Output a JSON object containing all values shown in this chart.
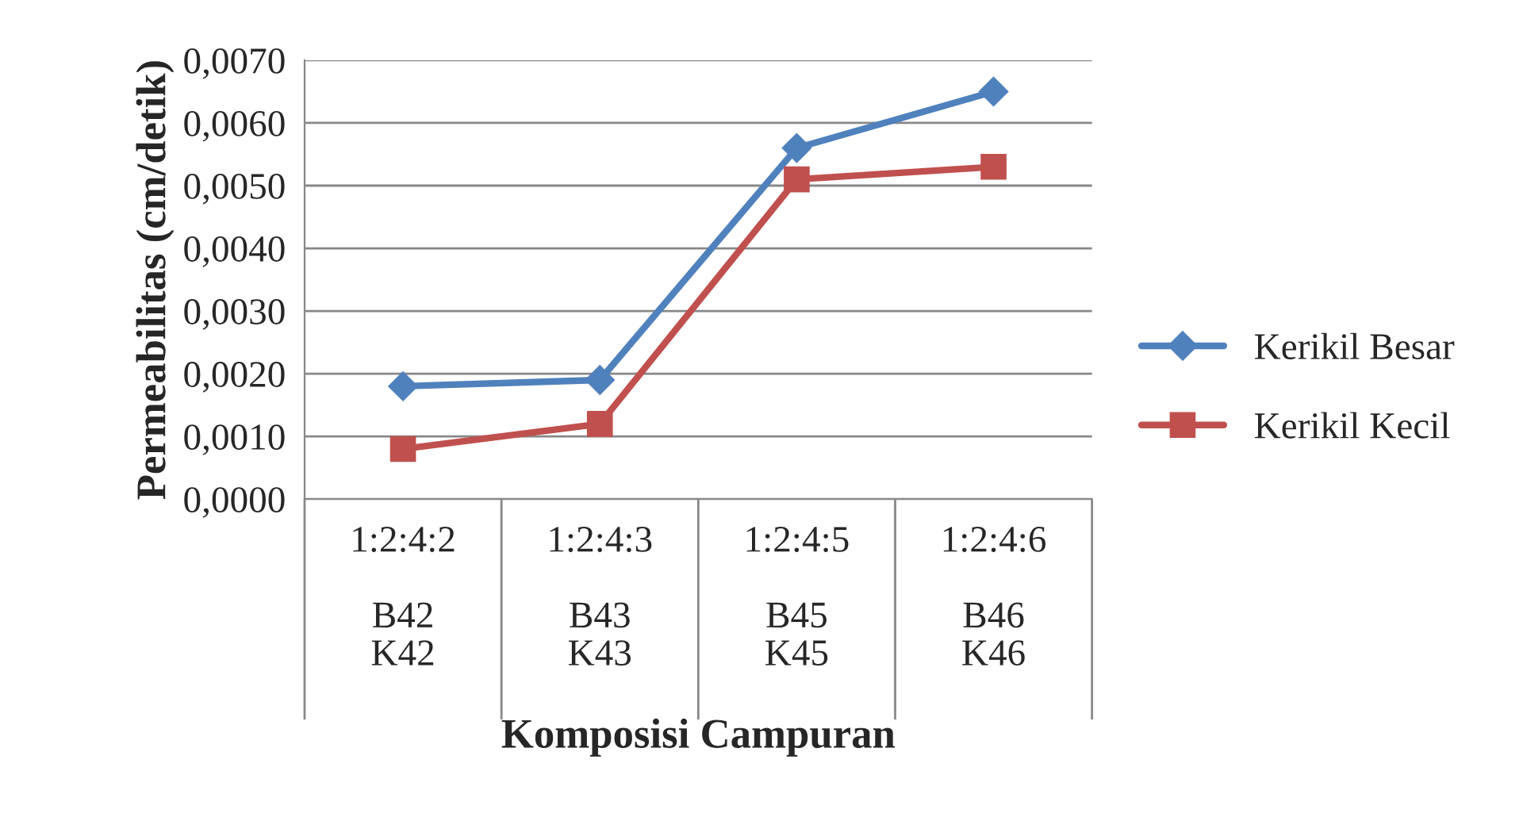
{
  "chart_data": {
    "type": "line",
    "xlabel": "Komposisi Campuran",
    "ylabel": "Permeabilitas (cm/detik)",
    "categories": [
      "1:2:4:2\n\nB42\nK42",
      "1:2:4:3\n\nB43\nK43",
      "1:2:4:5\n\nB45\nK45",
      "1:2:4:6\n\nB46\nK46"
    ],
    "series": [
      {
        "name": "Kerikil Besar",
        "color": "#4f81bd",
        "marker": "diamond",
        "values": [
          0.0018,
          0.0019,
          0.0056,
          0.0065
        ]
      },
      {
        "name": "Kerikil Kecil",
        "color": "#c0504d",
        "marker": "square",
        "values": [
          0.0008,
          0.0012,
          0.0051,
          0.0053
        ]
      }
    ],
    "ylim": [
      0,
      0.007
    ],
    "yticks": [
      {
        "value": 0,
        "label": "0,0000"
      },
      {
        "value": 0.001,
        "label": "0,0010"
      },
      {
        "value": 0.002,
        "label": "0,0020"
      },
      {
        "value": 0.003,
        "label": "0,0030"
      },
      {
        "value": 0.004,
        "label": "0,0040"
      },
      {
        "value": 0.005,
        "label": "0,0050"
      },
      {
        "value": 0.006,
        "label": "0,0060"
      },
      {
        "value": 0.007,
        "label": "0,0070"
      }
    ],
    "grid": "y",
    "legend": "right",
    "line_style": "solid"
  }
}
